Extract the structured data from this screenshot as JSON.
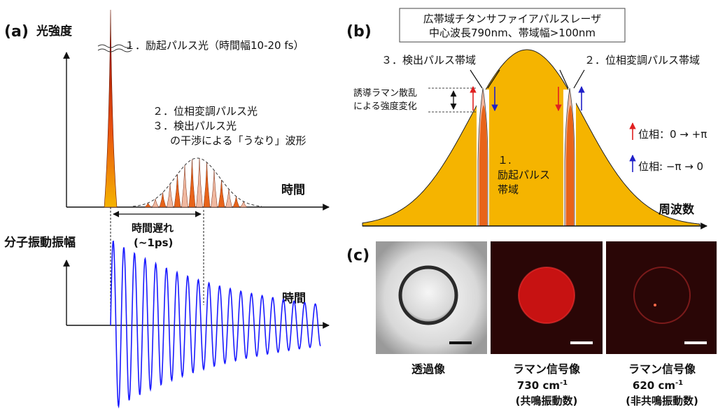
{
  "panel_a": {
    "label": "(a)",
    "intensity_axis": "光強度",
    "time_axis_top": "時間",
    "note1": "１．励起パルス光（時間幅10-20 fs）",
    "note2": "２．位相変調パルス光",
    "note3": "３．検出パルス光",
    "note4": "の干渉による「うなり」波形",
    "delay_label": "時間遅れ",
    "delay_value": "(~1ps)",
    "amplitude_axis": "分子振動振幅",
    "time_axis_bottom": "時間"
  },
  "panel_b": {
    "label": "(b)",
    "laser_title": "広帯域チタンサファイアパルスレーザ",
    "laser_spec": "中心波長790nm、帯域幅>100nm",
    "probe_band": "３．検出パルス帯域",
    "phase_band": "２．位相変調パルス帯域",
    "raman_change_1": "誘導ラマン散乱",
    "raman_change_2": "による強度変化",
    "excite_1": "１.",
    "excite_2": "励起パルス",
    "excite_3": "帯域",
    "phase_plus": "位相：0 → +π",
    "phase_minus": "位相: −π → 0",
    "freq_axis": "周波数"
  },
  "panel_c": {
    "label": "(c)",
    "img1_caption": "透過像",
    "img2_caption": "ラマン信号像",
    "img2_freq": "730 cm",
    "img2_note": "(共鳴振動数)",
    "img3_caption": "ラマン信号像",
    "img3_freq": "620 cm",
    "img3_note": "(非共鳴振動数)",
    "freq_exponent": "-1"
  },
  "colors": {
    "orange": "#f5b400",
    "dark_orange": "#e8641a",
    "light_orange": "#f0b8a0",
    "wave_blue": "#1a1aff",
    "arrow_red": "#e02020",
    "arrow_blue": "#2020c8",
    "raman_red": "#e01010"
  }
}
